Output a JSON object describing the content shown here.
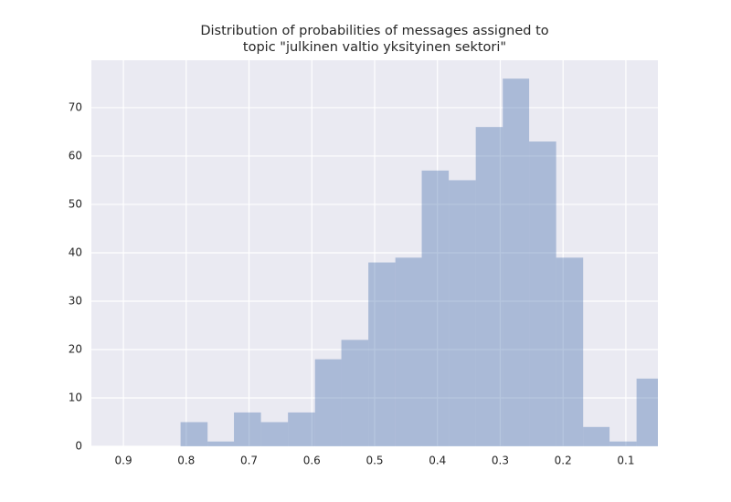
{
  "chart_data": {
    "type": "histogram",
    "title": [
      "Distribution of probabilities of messages assigned to",
      "topic \"julkinen valtio yksityinen sektori\""
    ],
    "bins": [
      0.809,
      0.766,
      0.724,
      0.681,
      0.638,
      0.595,
      0.553,
      0.51,
      0.467,
      0.425,
      0.382,
      0.339,
      0.296,
      0.254,
      0.211,
      0.168,
      0.126,
      0.083,
      0.04
    ],
    "values": [
      5,
      1,
      7,
      5,
      7,
      18,
      22,
      38,
      39,
      57,
      55,
      66,
      76,
      63,
      39,
      4,
      1,
      14
    ],
    "color": "#4c72b0",
    "alpha": 0.4,
    "xlim": [
      0.951,
      0.049
    ],
    "xticks": [
      0.9,
      0.8,
      0.7,
      0.6,
      0.5,
      0.4,
      0.3,
      0.2,
      0.1
    ],
    "ylim": [
      0,
      79.8
    ],
    "yticks": [
      0,
      10,
      20,
      30,
      40,
      50,
      60,
      70
    ],
    "grid": true
  }
}
